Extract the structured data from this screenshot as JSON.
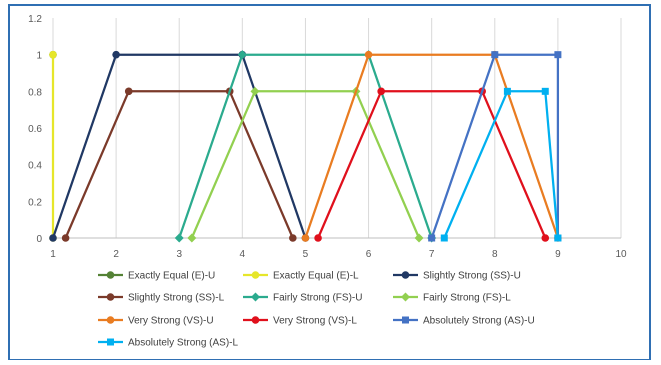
{
  "chart_data": {
    "type": "line",
    "title": "",
    "xlabel": "",
    "ylabel": "",
    "xlim": [
      1,
      10
    ],
    "ylim": [
      0,
      1.2
    ],
    "x_ticks": [
      "1",
      "2",
      "3",
      "4",
      "5",
      "6",
      "7",
      "8",
      "9",
      "10"
    ],
    "y_ticks": [
      "0",
      "0.2",
      "0.4",
      "0.6",
      "0.8",
      "1",
      "1.2"
    ],
    "grid": "vertical",
    "legend_position": "bottom",
    "series": [
      {
        "name": "Exactly Equal (E)-U",
        "color": "#548235",
        "marker": "circle",
        "points": [
          [
            1,
            1
          ]
        ]
      },
      {
        "name": "Exactly Equal (E)-L",
        "color": "#e6e62a",
        "marker": "circle",
        "points": [
          [
            1,
            0
          ],
          [
            1,
            1
          ]
        ]
      },
      {
        "name": "Slightly Strong (SS)-U",
        "color": "#203864",
        "marker": "circle",
        "points": [
          [
            1,
            0
          ],
          [
            2,
            1
          ],
          [
            4,
            1
          ],
          [
            5,
            0
          ]
        ]
      },
      {
        "name": "Slightly Strong (SS)-L",
        "color": "#7b3a2a",
        "marker": "circle",
        "points": [
          [
            1.2,
            0
          ],
          [
            2.2,
            0.8
          ],
          [
            3.8,
            0.8
          ],
          [
            4.8,
            0
          ]
        ]
      },
      {
        "name": "Fairly Strong (FS)-U",
        "color": "#2bab8e",
        "marker": "diamond",
        "points": [
          [
            3,
            0
          ],
          [
            4,
            1
          ],
          [
            6,
            1
          ],
          [
            7,
            0
          ]
        ]
      },
      {
        "name": "Fairly Strong (FS)-L",
        "color": "#92d050",
        "marker": "diamond",
        "points": [
          [
            3.2,
            0
          ],
          [
            4.2,
            0.8
          ],
          [
            5.8,
            0.8
          ],
          [
            6.8,
            0
          ]
        ]
      },
      {
        "name": "Very Strong (VS)-U",
        "color": "#e97c21",
        "marker": "circle",
        "points": [
          [
            5,
            0
          ],
          [
            6,
            1
          ],
          [
            8,
            1
          ],
          [
            9,
            0
          ]
        ]
      },
      {
        "name": "Very Strong (VS)-L",
        "color": "#e0101c",
        "marker": "circle",
        "points": [
          [
            5.2,
            0
          ],
          [
            6.2,
            0.8
          ],
          [
            7.8,
            0.8
          ],
          [
            8.8,
            0
          ]
        ]
      },
      {
        "name": "Absolutely Strong (AS)-U",
        "color": "#4472c4",
        "marker": "square",
        "points": [
          [
            7,
            0
          ],
          [
            8,
            1
          ],
          [
            9,
            1
          ],
          [
            9,
            0
          ]
        ]
      },
      {
        "name": "Absolutely Strong (AS)-L",
        "color": "#00b0f0",
        "marker": "square",
        "points": [
          [
            7.2,
            0
          ],
          [
            8.2,
            0.8
          ],
          [
            8.8,
            0.8
          ],
          [
            9,
            0
          ]
        ]
      }
    ]
  }
}
